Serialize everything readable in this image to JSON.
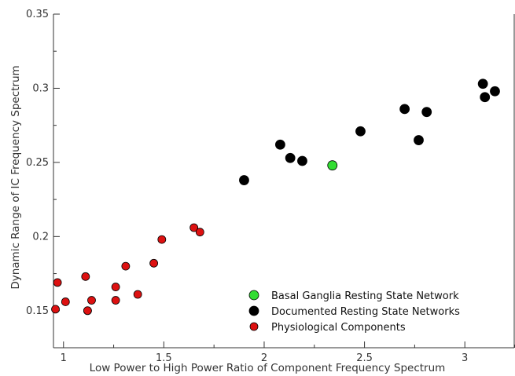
{
  "chart_data": {
    "type": "scatter",
    "title": "",
    "xlabel": "Low Power to High Power Ratio of Component Frequency Spectrum",
    "ylabel": "Dynamic Range of IC Frequency Spectrum",
    "xlim": [
      0.95,
      3.25
    ],
    "ylim": [
      0.125,
      0.35
    ],
    "xticks": [
      {
        "value": 1,
        "label": "1"
      },
      {
        "value": 1.5,
        "label": "1.5"
      },
      {
        "value": 2,
        "label": "2"
      },
      {
        "value": 2.5,
        "label": "2.5"
      },
      {
        "value": 3,
        "label": "3"
      }
    ],
    "yticks": [
      {
        "value": 0.15,
        "label": "0.15"
      },
      {
        "value": 0.2,
        "label": "0.2"
      },
      {
        "value": 0.25,
        "label": "0.25"
      },
      {
        "value": 0.3,
        "label": "0.3"
      },
      {
        "value": 0.35,
        "label": "0.35"
      }
    ],
    "grid": false,
    "legend_position": "bottom-right",
    "series": [
      {
        "name": "Basal Ganglia Resting State Network",
        "color": "#33dd33",
        "points": [
          [
            2.34,
            0.248
          ]
        ]
      },
      {
        "name": "Documented Resting State Networks",
        "color": "#000000",
        "points": [
          [
            1.9,
            0.238
          ],
          [
            2.08,
            0.262
          ],
          [
            2.13,
            0.253
          ],
          [
            2.19,
            0.251
          ],
          [
            2.48,
            0.271
          ],
          [
            2.7,
            0.286
          ],
          [
            2.77,
            0.265
          ],
          [
            2.81,
            0.284
          ],
          [
            3.09,
            0.303
          ],
          [
            3.1,
            0.294
          ],
          [
            3.15,
            0.298
          ]
        ]
      },
      {
        "name": "Physiological Components",
        "color": "#dd1111",
        "points": [
          [
            0.96,
            0.151
          ],
          [
            0.97,
            0.169
          ],
          [
            1.01,
            0.156
          ],
          [
            1.11,
            0.173
          ],
          [
            1.12,
            0.15
          ],
          [
            1.12,
            0.15
          ],
          [
            1.14,
            0.157
          ],
          [
            1.26,
            0.166
          ],
          [
            1.26,
            0.157
          ],
          [
            1.31,
            0.18
          ],
          [
            1.37,
            0.161
          ],
          [
            1.45,
            0.182
          ],
          [
            1.49,
            0.198
          ],
          [
            1.65,
            0.206
          ],
          [
            1.68,
            0.203
          ]
        ]
      }
    ]
  }
}
